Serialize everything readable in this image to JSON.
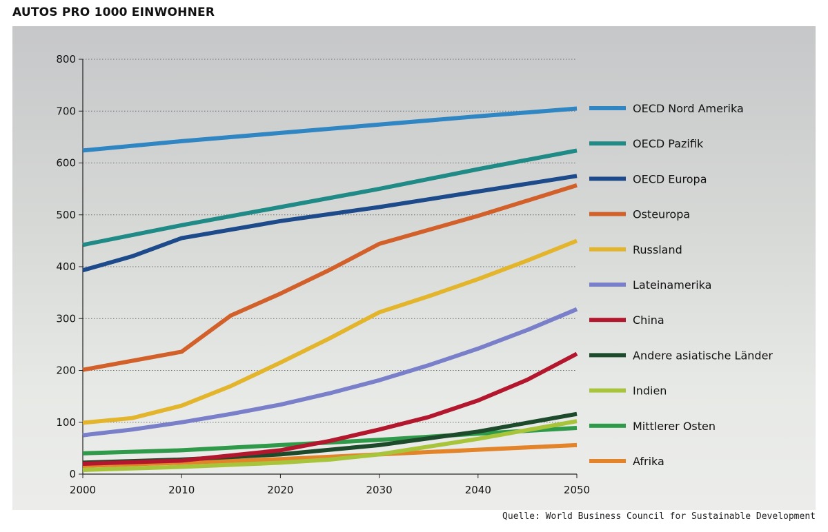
{
  "title": "AUTOS PRO 1000 EINWOHNER",
  "source": "Quelle: World Business Council for Sustainable Development",
  "chart_data": {
    "type": "line",
    "title": "AUTOS PRO 1000 EINWOHNER",
    "xlabel": "",
    "ylabel": "",
    "xlim": [
      2000,
      2050
    ],
    "ylim": [
      0,
      800
    ],
    "x_ticks": [
      "2000",
      "2010",
      "2020",
      "2030",
      "2040",
      "2050"
    ],
    "y_ticks": [
      "0",
      "100",
      "200",
      "300",
      "400",
      "500",
      "600",
      "700",
      "800"
    ],
    "grid": "horizontal dotted",
    "legend_position": "right",
    "series": [
      {
        "name": "OECD Nord Amerika",
        "color": "#2f86c3",
        "x": [
          2000,
          2010,
          2020,
          2030,
          2040,
          2050
        ],
        "y": [
          624,
          642,
          658,
          674,
          690,
          705
        ]
      },
      {
        "name": "OECD Pazifik",
        "color": "#1f8a86",
        "x": [
          2000,
          2010,
          2020,
          2030,
          2040,
          2050
        ],
        "y": [
          442,
          480,
          515,
          550,
          588,
          624
        ]
      },
      {
        "name": "OECD Europa",
        "color": "#1d4a8a",
        "x": [
          2000,
          2005,
          2010,
          2020,
          2030,
          2040,
          2050
        ],
        "y": [
          393,
          420,
          455,
          488,
          515,
          545,
          575
        ]
      },
      {
        "name": "Osteuropa",
        "color": "#d2602a",
        "x": [
          2000,
          2010,
          2015,
          2020,
          2025,
          2030,
          2040,
          2050
        ],
        "y": [
          201,
          236,
          306,
          348,
          394,
          444,
          498,
          557
        ]
      },
      {
        "name": "Russland",
        "color": "#e3b52c",
        "x": [
          2000,
          2005,
          2010,
          2015,
          2020,
          2025,
          2030,
          2035,
          2040,
          2045,
          2050
        ],
        "y": [
          99,
          108,
          132,
          170,
          215,
          262,
          312,
          343,
          376,
          412,
          450
        ]
      },
      {
        "name": "Lateinamerika",
        "color": "#7a7fc9",
        "x": [
          2000,
          2005,
          2010,
          2015,
          2020,
          2025,
          2030,
          2035,
          2040,
          2045,
          2050
        ],
        "y": [
          75,
          86,
          100,
          116,
          134,
          156,
          181,
          210,
          242,
          278,
          318
        ]
      },
      {
        "name": "China",
        "color": "#b3172e",
        "x": [
          2000,
          2010,
          2020,
          2025,
          2030,
          2035,
          2040,
          2045,
          2050
        ],
        "y": [
          20,
          26,
          46,
          64,
          86,
          110,
          142,
          182,
          232
        ]
      },
      {
        "name": "Andere asiatische Länder",
        "color": "#1d4a2a",
        "x": [
          2000,
          2010,
          2020,
          2030,
          2040,
          2050
        ],
        "y": [
          22,
          28,
          38,
          56,
          82,
          116
        ]
      },
      {
        "name": "Indien",
        "color": "#a8c43a",
        "x": [
          2000,
          2010,
          2020,
          2025,
          2030,
          2040,
          2050
        ],
        "y": [
          8,
          14,
          22,
          28,
          38,
          68,
          102
        ]
      },
      {
        "name": "Mittlerer Osten",
        "color": "#2e9a4a",
        "x": [
          2000,
          2010,
          2020,
          2030,
          2040,
          2050
        ],
        "y": [
          40,
          46,
          56,
          66,
          78,
          89
        ]
      },
      {
        "name": "Afrika",
        "color": "#e3832a",
        "x": [
          2000,
          2010,
          2020,
          2030,
          2040,
          2050
        ],
        "y": [
          16,
          22,
          29,
          38,
          47,
          56
        ]
      }
    ]
  }
}
